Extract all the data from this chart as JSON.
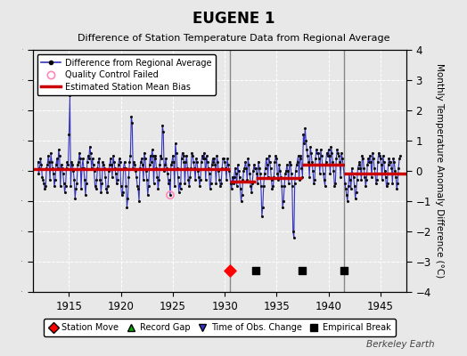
{
  "title": "EUGENE 1",
  "subtitle": "Difference of Station Temperature Data from Regional Average",
  "ylabel": "Monthly Temperature Anomaly Difference (°C)",
  "xlim": [
    1911.5,
    1947.5
  ],
  "ylim": [
    -4,
    4
  ],
  "yticks": [
    -4,
    -3,
    -2,
    -1,
    0,
    1,
    2,
    3,
    4
  ],
  "xticks": [
    1915,
    1920,
    1925,
    1930,
    1935,
    1940,
    1945
  ],
  "background_color": "#e8e8e8",
  "grid_color": "#ffffff",
  "line_color": "#3333bb",
  "dot_color": "#111111",
  "bias_color": "#cc0000",
  "watermark": "Berkeley Earth",
  "station_move": [
    1930.5
  ],
  "empirical_breaks": [
    1933.0,
    1937.5,
    1941.5
  ],
  "vertical_lines": [
    1930.5,
    1941.5
  ],
  "bias_segments": [
    {
      "x": [
        1911.5,
        1930.5
      ],
      "y": [
        0.05,
        0.05
      ]
    },
    {
      "x": [
        1930.5,
        1933.0
      ],
      "y": [
        -0.35,
        -0.35
      ]
    },
    {
      "x": [
        1933.0,
        1937.5
      ],
      "y": [
        -0.25,
        -0.25
      ]
    },
    {
      "x": [
        1937.5,
        1941.5
      ],
      "y": [
        0.2,
        0.2
      ]
    },
    {
      "x": [
        1941.5,
        1947.5
      ],
      "y": [
        -0.1,
        -0.1
      ]
    }
  ],
  "qc_failed_x": [
    1924.75
  ],
  "qc_failed_y": [
    -0.8
  ],
  "event_y": -3.3,
  "data": [
    [
      1912.0,
      0.3
    ],
    [
      1912.083,
      -0.1
    ],
    [
      1912.167,
      0.1
    ],
    [
      1912.25,
      0.4
    ],
    [
      1912.333,
      0.2
    ],
    [
      1912.417,
      -0.2
    ],
    [
      1912.5,
      -0.3
    ],
    [
      1912.583,
      -0.4
    ],
    [
      1912.667,
      -0.6
    ],
    [
      1912.75,
      -0.5
    ],
    [
      1912.833,
      0.1
    ],
    [
      1912.917,
      0.2
    ],
    [
      1913.0,
      0.5
    ],
    [
      1913.083,
      0.3
    ],
    [
      1913.167,
      -0.3
    ],
    [
      1913.25,
      0.6
    ],
    [
      1913.333,
      0.3
    ],
    [
      1913.417,
      0.1
    ],
    [
      1913.5,
      -0.1
    ],
    [
      1913.583,
      -0.5
    ],
    [
      1913.667,
      -0.3
    ],
    [
      1913.75,
      0.2
    ],
    [
      1913.833,
      0.4
    ],
    [
      1913.917,
      0.1
    ],
    [
      1914.0,
      0.7
    ],
    [
      1914.083,
      0.5
    ],
    [
      1914.167,
      -0.5
    ],
    [
      1914.25,
      0.2
    ],
    [
      1914.333,
      0.1
    ],
    [
      1914.417,
      -0.1
    ],
    [
      1914.5,
      -0.4
    ],
    [
      1914.583,
      -0.7
    ],
    [
      1914.667,
      -0.5
    ],
    [
      1914.75,
      0.1
    ],
    [
      1914.833,
      0.3
    ],
    [
      1914.917,
      0.2
    ],
    [
      1915.0,
      1.2
    ],
    [
      1915.083,
      2.5
    ],
    [
      1915.167,
      -0.5
    ],
    [
      1915.25,
      0.3
    ],
    [
      1915.333,
      0.2
    ],
    [
      1915.417,
      0.0
    ],
    [
      1915.5,
      -0.3
    ],
    [
      1915.583,
      -0.9
    ],
    [
      1915.667,
      -0.6
    ],
    [
      1915.75,
      -0.4
    ],
    [
      1915.833,
      0.2
    ],
    [
      1915.917,
      0.3
    ],
    [
      1916.0,
      0.6
    ],
    [
      1916.083,
      0.4
    ],
    [
      1916.167,
      -0.6
    ],
    [
      1916.25,
      0.1
    ],
    [
      1916.333,
      0.4
    ],
    [
      1916.417,
      0.1
    ],
    [
      1916.5,
      -0.3
    ],
    [
      1916.583,
      -0.8
    ],
    [
      1916.667,
      -0.4
    ],
    [
      1916.75,
      0.3
    ],
    [
      1916.833,
      0.5
    ],
    [
      1916.917,
      0.4
    ],
    [
      1917.0,
      0.8
    ],
    [
      1917.083,
      0.6
    ],
    [
      1917.167,
      0.1
    ],
    [
      1917.25,
      0.4
    ],
    [
      1917.333,
      0.2
    ],
    [
      1917.417,
      0.0
    ],
    [
      1917.5,
      -0.5
    ],
    [
      1917.583,
      -0.6
    ],
    [
      1917.667,
      -0.3
    ],
    [
      1917.75,
      0.1
    ],
    [
      1917.833,
      0.3
    ],
    [
      1917.917,
      0.4
    ],
    [
      1918.0,
      -0.3
    ],
    [
      1918.083,
      -0.7
    ],
    [
      1918.167,
      -0.4
    ],
    [
      1918.25,
      0.3
    ],
    [
      1918.333,
      0.2
    ],
    [
      1918.417,
      0.1
    ],
    [
      1918.5,
      -0.2
    ],
    [
      1918.583,
      -0.6
    ],
    [
      1918.667,
      -0.7
    ],
    [
      1918.75,
      -0.5
    ],
    [
      1918.833,
      0.0
    ],
    [
      1918.917,
      0.2
    ],
    [
      1919.0,
      0.4
    ],
    [
      1919.083,
      0.2
    ],
    [
      1919.167,
      -0.2
    ],
    [
      1919.25,
      0.5
    ],
    [
      1919.333,
      0.3
    ],
    [
      1919.417,
      0.1
    ],
    [
      1919.5,
      -0.1
    ],
    [
      1919.583,
      -0.4
    ],
    [
      1919.667,
      -0.3
    ],
    [
      1919.75,
      0.2
    ],
    [
      1919.833,
      0.4
    ],
    [
      1919.917,
      0.3
    ],
    [
      1920.0,
      -0.5
    ],
    [
      1920.083,
      -0.8
    ],
    [
      1920.167,
      -0.7
    ],
    [
      1920.25,
      0.1
    ],
    [
      1920.333,
      0.3
    ],
    [
      1920.417,
      0.1
    ],
    [
      1920.5,
      -0.5
    ],
    [
      1920.583,
      -1.2
    ],
    [
      1920.667,
      -0.9
    ],
    [
      1920.75,
      -0.2
    ],
    [
      1920.833,
      0.3
    ],
    [
      1920.917,
      0.5
    ],
    [
      1921.0,
      1.8
    ],
    [
      1921.083,
      1.6
    ],
    [
      1921.167,
      0.1
    ],
    [
      1921.25,
      0.3
    ],
    [
      1921.333,
      0.2
    ],
    [
      1921.417,
      0.0
    ],
    [
      1921.5,
      -0.2
    ],
    [
      1921.583,
      -0.5
    ],
    [
      1921.667,
      -0.6
    ],
    [
      1921.75,
      -1.0
    ],
    [
      1921.833,
      0.1
    ],
    [
      1921.917,
      0.3
    ],
    [
      1922.0,
      0.4
    ],
    [
      1922.083,
      0.2
    ],
    [
      1922.167,
      -0.3
    ],
    [
      1922.25,
      0.6
    ],
    [
      1922.333,
      0.4
    ],
    [
      1922.417,
      0.0
    ],
    [
      1922.5,
      -0.3
    ],
    [
      1922.583,
      -0.8
    ],
    [
      1922.667,
      -0.5
    ],
    [
      1922.75,
      0.2
    ],
    [
      1922.833,
      0.5
    ],
    [
      1922.917,
      0.3
    ],
    [
      1923.0,
      0.7
    ],
    [
      1923.083,
      0.5
    ],
    [
      1923.167,
      -0.4
    ],
    [
      1923.25,
      0.5
    ],
    [
      1923.333,
      0.4
    ],
    [
      1923.417,
      0.1
    ],
    [
      1923.5,
      -0.2
    ],
    [
      1923.583,
      -0.6
    ],
    [
      1923.667,
      -0.3
    ],
    [
      1923.75,
      0.2
    ],
    [
      1923.833,
      0.5
    ],
    [
      1923.917,
      0.4
    ],
    [
      1924.0,
      1.5
    ],
    [
      1924.083,
      1.3
    ],
    [
      1924.167,
      0.0
    ],
    [
      1924.25,
      0.2
    ],
    [
      1924.333,
      0.4
    ],
    [
      1924.417,
      0.1
    ],
    [
      1924.5,
      -0.1
    ],
    [
      1924.583,
      -0.4
    ],
    [
      1924.667,
      -0.3
    ],
    [
      1924.75,
      -0.8
    ],
    [
      1924.833,
      0.2
    ],
    [
      1924.917,
      0.3
    ],
    [
      1925.0,
      0.5
    ],
    [
      1925.083,
      0.3
    ],
    [
      1925.167,
      -0.5
    ],
    [
      1925.25,
      0.9
    ],
    [
      1925.333,
      0.6
    ],
    [
      1925.417,
      0.1
    ],
    [
      1925.5,
      -0.2
    ],
    [
      1925.583,
      -0.7
    ],
    [
      1925.667,
      -0.4
    ],
    [
      1925.75,
      -0.6
    ],
    [
      1925.833,
      0.4
    ],
    [
      1925.917,
      0.6
    ],
    [
      1926.0,
      0.5
    ],
    [
      1926.083,
      0.3
    ],
    [
      1926.167,
      -0.4
    ],
    [
      1926.25,
      0.3
    ],
    [
      1926.333,
      0.5
    ],
    [
      1926.417,
      0.1
    ],
    [
      1926.5,
      -0.3
    ],
    [
      1926.583,
      -0.5
    ],
    [
      1926.667,
      -0.2
    ],
    [
      1926.75,
      0.1
    ],
    [
      1926.833,
      0.6
    ],
    [
      1926.917,
      0.5
    ],
    [
      1927.0,
      0.3
    ],
    [
      1927.083,
      0.1
    ],
    [
      1927.167,
      -0.3
    ],
    [
      1927.25,
      0.4
    ],
    [
      1927.333,
      0.3
    ],
    [
      1927.417,
      0.0
    ],
    [
      1927.5,
      -0.2
    ],
    [
      1927.583,
      -0.5
    ],
    [
      1927.667,
      -0.3
    ],
    [
      1927.75,
      0.3
    ],
    [
      1927.833,
      0.5
    ],
    [
      1927.917,
      0.4
    ],
    [
      1928.0,
      0.6
    ],
    [
      1928.083,
      0.4
    ],
    [
      1928.167,
      -0.3
    ],
    [
      1928.25,
      0.5
    ],
    [
      1928.333,
      0.3
    ],
    [
      1928.417,
      0.1
    ],
    [
      1928.5,
      -0.1
    ],
    [
      1928.583,
      -0.6
    ],
    [
      1928.667,
      -0.4
    ],
    [
      1928.75,
      0.2
    ],
    [
      1928.833,
      0.4
    ],
    [
      1928.917,
      0.3
    ],
    [
      1929.0,
      0.4
    ],
    [
      1929.083,
      0.2
    ],
    [
      1929.167,
      -0.4
    ],
    [
      1929.25,
      0.5
    ],
    [
      1929.333,
      0.3
    ],
    [
      1929.417,
      0.0
    ],
    [
      1929.5,
      -0.3
    ],
    [
      1929.583,
      -0.5
    ],
    [
      1929.667,
      -0.4
    ],
    [
      1929.75,
      0.1
    ],
    [
      1929.833,
      0.4
    ],
    [
      1929.917,
      0.4
    ],
    [
      1930.0,
      0.3
    ],
    [
      1930.083,
      0.1
    ],
    [
      1930.167,
      -0.3
    ],
    [
      1930.25,
      0.4
    ],
    [
      1930.333,
      0.2
    ],
    [
      1930.417,
      0.0
    ],
    [
      1930.583,
      -0.4
    ],
    [
      1930.667,
      -0.6
    ],
    [
      1930.75,
      -0.2
    ],
    [
      1930.833,
      -0.4
    ],
    [
      1930.917,
      -0.2
    ],
    [
      1931.0,
      0.1
    ],
    [
      1931.083,
      -0.1
    ],
    [
      1931.167,
      -0.5
    ],
    [
      1931.25,
      0.2
    ],
    [
      1931.333,
      0.0
    ],
    [
      1931.417,
      -0.2
    ],
    [
      1931.5,
      -0.6
    ],
    [
      1931.583,
      -1.0
    ],
    [
      1931.667,
      -0.8
    ],
    [
      1931.75,
      -0.3
    ],
    [
      1931.833,
      0.0
    ],
    [
      1931.917,
      0.1
    ],
    [
      1932.0,
      0.3
    ],
    [
      1932.083,
      0.1
    ],
    [
      1932.167,
      -0.3
    ],
    [
      1932.25,
      0.4
    ],
    [
      1932.333,
      0.2
    ],
    [
      1932.417,
      -0.1
    ],
    [
      1932.5,
      -0.5
    ],
    [
      1932.583,
      -0.7
    ],
    [
      1932.667,
      -0.4
    ],
    [
      1932.75,
      0.0
    ],
    [
      1932.833,
      0.2
    ],
    [
      1932.917,
      0.1
    ],
    [
      1933.0,
      0.1
    ],
    [
      1933.083,
      -0.1
    ],
    [
      1933.167,
      -0.4
    ],
    [
      1933.25,
      0.3
    ],
    [
      1933.333,
      0.1
    ],
    [
      1933.417,
      -0.1
    ],
    [
      1933.5,
      -0.5
    ],
    [
      1933.583,
      -1.5
    ],
    [
      1933.667,
      -1.2
    ],
    [
      1933.75,
      -0.5
    ],
    [
      1933.833,
      -0.1
    ],
    [
      1933.917,
      0.1
    ],
    [
      1934.0,
      0.4
    ],
    [
      1934.083,
      0.2
    ],
    [
      1934.167,
      -0.2
    ],
    [
      1934.25,
      0.5
    ],
    [
      1934.333,
      0.3
    ],
    [
      1934.417,
      0.1
    ],
    [
      1934.5,
      -0.3
    ],
    [
      1934.583,
      -0.6
    ],
    [
      1934.667,
      -0.5
    ],
    [
      1934.75,
      -0.2
    ],
    [
      1934.833,
      0.3
    ],
    [
      1934.917,
      0.5
    ],
    [
      1935.0,
      0.4
    ],
    [
      1935.083,
      -0.1
    ],
    [
      1935.167,
      -0.3
    ],
    [
      1935.25,
      0.2
    ],
    [
      1935.333,
      0.0
    ],
    [
      1935.417,
      -0.2
    ],
    [
      1935.5,
      -0.5
    ],
    [
      1935.583,
      -1.2
    ],
    [
      1935.667,
      -1.0
    ],
    [
      1935.75,
      -0.5
    ],
    [
      1935.833,
      -0.1
    ],
    [
      1935.917,
      0.0
    ],
    [
      1936.0,
      0.2
    ],
    [
      1936.083,
      0.0
    ],
    [
      1936.167,
      -0.4
    ],
    [
      1936.25,
      0.3
    ],
    [
      1936.333,
      0.2
    ],
    [
      1936.417,
      -0.1
    ],
    [
      1936.5,
      -0.5
    ],
    [
      1936.583,
      -2.0
    ],
    [
      1936.667,
      -2.2
    ],
    [
      1936.75,
      -0.4
    ],
    [
      1936.833,
      0.0
    ],
    [
      1936.917,
      0.2
    ],
    [
      1937.0,
      0.3
    ],
    [
      1937.083,
      0.5
    ],
    [
      1937.167,
      -0.3
    ],
    [
      1937.25,
      0.4
    ],
    [
      1937.333,
      0.5
    ],
    [
      1937.417,
      0.1
    ],
    [
      1937.5,
      -0.2
    ],
    [
      1937.583,
      1.2
    ],
    [
      1937.667,
      0.9
    ],
    [
      1937.75,
      1.4
    ],
    [
      1937.833,
      1.0
    ],
    [
      1937.917,
      0.7
    ],
    [
      1938.0,
      0.5
    ],
    [
      1938.083,
      0.3
    ],
    [
      1938.167,
      -0.2
    ],
    [
      1938.25,
      0.8
    ],
    [
      1938.333,
      0.6
    ],
    [
      1938.417,
      0.3
    ],
    [
      1938.5,
      0.0
    ],
    [
      1938.583,
      -0.4
    ],
    [
      1938.667,
      -0.3
    ],
    [
      1938.75,
      0.4
    ],
    [
      1938.833,
      0.7
    ],
    [
      1938.917,
      0.6
    ],
    [
      1939.0,
      0.6
    ],
    [
      1939.083,
      0.4
    ],
    [
      1939.167,
      -0.1
    ],
    [
      1939.25,
      0.7
    ],
    [
      1939.333,
      0.5
    ],
    [
      1939.417,
      0.2
    ],
    [
      1939.5,
      -0.1
    ],
    [
      1939.583,
      -0.3
    ],
    [
      1939.667,
      -0.5
    ],
    [
      1939.75,
      0.3
    ],
    [
      1939.833,
      0.6
    ],
    [
      1939.917,
      0.5
    ],
    [
      1940.0,
      0.7
    ],
    [
      1940.083,
      0.5
    ],
    [
      1940.167,
      -0.1
    ],
    [
      1940.25,
      0.8
    ],
    [
      1940.333,
      0.6
    ],
    [
      1940.417,
      0.3
    ],
    [
      1940.5,
      0.0
    ],
    [
      1940.583,
      -0.5
    ],
    [
      1940.667,
      -0.4
    ],
    [
      1940.75,
      0.4
    ],
    [
      1940.833,
      0.7
    ],
    [
      1940.917,
      0.6
    ],
    [
      1941.0,
      0.5
    ],
    [
      1941.083,
      0.3
    ],
    [
      1941.167,
      -0.2
    ],
    [
      1941.25,
      0.6
    ],
    [
      1941.333,
      0.4
    ],
    [
      1941.417,
      0.2
    ],
    [
      1941.583,
      -0.4
    ],
    [
      1941.667,
      -0.6
    ],
    [
      1941.75,
      -0.8
    ],
    [
      1941.833,
      -1.0
    ],
    [
      1941.917,
      -0.5
    ],
    [
      1942.0,
      -0.1
    ],
    [
      1942.083,
      -0.3
    ],
    [
      1942.167,
      -0.6
    ],
    [
      1942.25,
      0.1
    ],
    [
      1942.333,
      -0.1
    ],
    [
      1942.417,
      -0.2
    ],
    [
      1942.5,
      -0.5
    ],
    [
      1942.583,
      -0.9
    ],
    [
      1942.667,
      -0.7
    ],
    [
      1942.75,
      -0.3
    ],
    [
      1942.833,
      0.1
    ],
    [
      1942.917,
      0.2
    ],
    [
      1943.0,
      0.3
    ],
    [
      1943.083,
      0.1
    ],
    [
      1943.167,
      -0.3
    ],
    [
      1943.25,
      0.5
    ],
    [
      1943.333,
      0.4
    ],
    [
      1943.417,
      0.1
    ],
    [
      1943.5,
      -0.2
    ],
    [
      1943.583,
      -0.5
    ],
    [
      1943.667,
      -0.3
    ],
    [
      1943.75,
      0.2
    ],
    [
      1943.833,
      0.4
    ],
    [
      1943.917,
      0.3
    ],
    [
      1944.0,
      0.5
    ],
    [
      1944.083,
      0.3
    ],
    [
      1944.167,
      -0.2
    ],
    [
      1944.25,
      0.6
    ],
    [
      1944.333,
      0.4
    ],
    [
      1944.417,
      0.1
    ],
    [
      1944.5,
      -0.1
    ],
    [
      1944.583,
      -0.4
    ],
    [
      1944.667,
      -0.3
    ],
    [
      1944.75,
      0.3
    ],
    [
      1944.833,
      0.6
    ],
    [
      1944.917,
      0.5
    ],
    [
      1945.0,
      0.4
    ],
    [
      1945.083,
      0.2
    ],
    [
      1945.167,
      -0.3
    ],
    [
      1945.25,
      0.5
    ],
    [
      1945.333,
      0.3
    ],
    [
      1945.417,
      0.0
    ],
    [
      1945.5,
      -0.2
    ],
    [
      1945.583,
      -0.5
    ],
    [
      1945.667,
      -0.4
    ],
    [
      1945.75,
      0.2
    ],
    [
      1945.833,
      0.4
    ],
    [
      1945.917,
      0.3
    ],
    [
      1946.0,
      0.3
    ],
    [
      1946.083,
      0.1
    ],
    [
      1946.167,
      -0.4
    ],
    [
      1946.25,
      0.4
    ],
    [
      1946.333,
      0.3
    ],
    [
      1946.417,
      0.0
    ],
    [
      1946.5,
      -0.2
    ],
    [
      1946.583,
      -0.6
    ],
    [
      1946.667,
      -0.4
    ],
    [
      1946.75,
      0.1
    ],
    [
      1946.833,
      0.4
    ],
    [
      1946.917,
      0.5
    ]
  ]
}
